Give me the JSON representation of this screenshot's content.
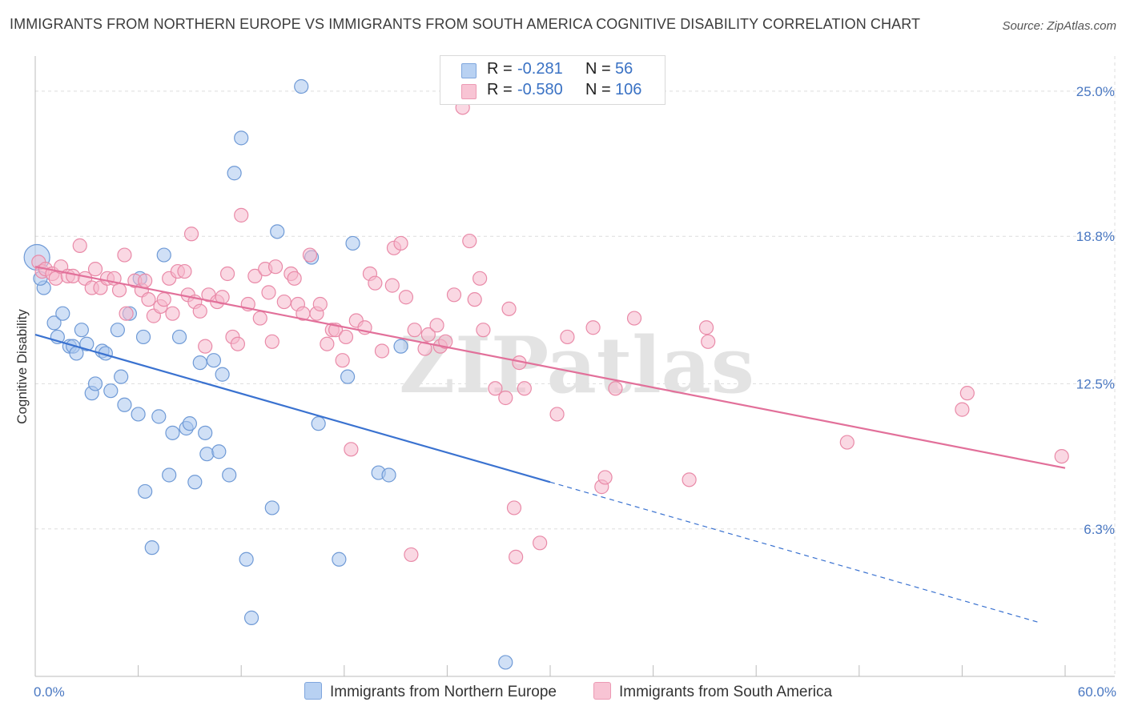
{
  "title": "IMMIGRANTS FROM NORTHERN EUROPE VS IMMIGRANTS FROM SOUTH AMERICA COGNITIVE DISABILITY CORRELATION CHART",
  "source": "Source: ZipAtlas.com",
  "watermark": "ZIPatlas",
  "legend": {
    "rows": [
      {
        "r_label": "R =",
        "r_value": "-0.281",
        "n_label": "N =",
        "n_value": "56"
      },
      {
        "r_label": "R =",
        "r_value": "-0.580",
        "n_label": "N =",
        "n_value": "106"
      }
    ]
  },
  "bottom_legend": {
    "series1": "Immigrants from Northern Europe",
    "series2": "Immigrants from South America"
  },
  "colors": {
    "series1_fill": "#a9c7ee",
    "series1_stroke": "#6f9ad6",
    "series1_line": "#3a72d0",
    "series2_fill": "#f6b8cc",
    "series2_stroke": "#e98aa8",
    "series2_line": "#e2709a",
    "tick_label": "#4a78c2",
    "grid": "#dddddd"
  },
  "chart_data": {
    "type": "scatter",
    "xlabel": "",
    "ylabel": "Cognitive Disability",
    "xlim": [
      0,
      60
    ],
    "ylim": [
      0,
      26.5
    ],
    "x_tick_labels": [
      "0.0%",
      "60.0%"
    ],
    "y_ticks": [
      6.3,
      12.5,
      18.8,
      25.0
    ],
    "y_tick_labels": [
      "6.3%",
      "12.5%",
      "18.8%",
      "25.0%"
    ],
    "grid": "horizontal dashed",
    "series": [
      {
        "name": "Immigrants from Northern Europe",
        "trend": {
          "x0": 0,
          "y0": 14.6,
          "x1": 30,
          "y1": 8.3,
          "dashed_to_x": 58.5,
          "dashed_to_y": 2.3
        },
        "points": [
          [
            0.1,
            17.9
          ],
          [
            0.5,
            16.6
          ],
          [
            0.3,
            17.0
          ],
          [
            1.1,
            15.1
          ],
          [
            1.3,
            14.5
          ],
          [
            1.6,
            15.5
          ],
          [
            2.0,
            14.1
          ],
          [
            2.2,
            14.1
          ],
          [
            2.4,
            13.8
          ],
          [
            2.7,
            14.8
          ],
          [
            3.0,
            14.2
          ],
          [
            3.3,
            12.1
          ],
          [
            3.5,
            12.5
          ],
          [
            3.9,
            13.9
          ],
          [
            4.1,
            13.8
          ],
          [
            4.4,
            12.2
          ],
          [
            4.8,
            14.8
          ],
          [
            5.0,
            12.8
          ],
          [
            5.2,
            11.6
          ],
          [
            5.5,
            15.5
          ],
          [
            6.0,
            11.2
          ],
          [
            6.1,
            17.0
          ],
          [
            6.3,
            14.5
          ],
          [
            6.4,
            7.9
          ],
          [
            6.8,
            5.5
          ],
          [
            7.2,
            11.1
          ],
          [
            7.5,
            18.0
          ],
          [
            7.8,
            8.6
          ],
          [
            8.0,
            10.4
          ],
          [
            8.4,
            14.5
          ],
          [
            8.8,
            10.6
          ],
          [
            9.0,
            10.8
          ],
          [
            9.3,
            8.3
          ],
          [
            9.6,
            13.4
          ],
          [
            9.9,
            10.4
          ],
          [
            10.0,
            9.5
          ],
          [
            10.4,
            13.5
          ],
          [
            10.7,
            9.6
          ],
          [
            10.9,
            12.9
          ],
          [
            11.3,
            8.6
          ],
          [
            11.6,
            21.5
          ],
          [
            12.0,
            23.0
          ],
          [
            12.3,
            5.0
          ],
          [
            12.6,
            2.5
          ],
          [
            13.8,
            7.2
          ],
          [
            14.1,
            19.0
          ],
          [
            15.5,
            25.2
          ],
          [
            16.1,
            17.9
          ],
          [
            16.5,
            10.8
          ],
          [
            17.7,
            5.0
          ],
          [
            18.2,
            12.8
          ],
          [
            18.5,
            18.5
          ],
          [
            20.0,
            8.7
          ],
          [
            20.6,
            8.6
          ],
          [
            21.3,
            14.1
          ],
          [
            27.4,
            0.6
          ]
        ]
      },
      {
        "name": "Immigrants from South America",
        "trend": {
          "x0": 0,
          "y0": 17.5,
          "x1": 60,
          "y1": 8.9
        },
        "points": [
          [
            0.2,
            17.7
          ],
          [
            0.4,
            17.3
          ],
          [
            0.6,
            17.4
          ],
          [
            1.0,
            17.2
          ],
          [
            1.2,
            17.0
          ],
          [
            1.5,
            17.5
          ],
          [
            1.9,
            17.1
          ],
          [
            2.2,
            17.1
          ],
          [
            2.6,
            18.4
          ],
          [
            2.9,
            17.0
          ],
          [
            3.3,
            16.6
          ],
          [
            3.5,
            17.4
          ],
          [
            3.8,
            16.6
          ],
          [
            4.2,
            17.0
          ],
          [
            4.6,
            17.0
          ],
          [
            4.9,
            16.5
          ],
          [
            5.2,
            18.0
          ],
          [
            5.3,
            15.5
          ],
          [
            5.8,
            16.9
          ],
          [
            6.2,
            16.5
          ],
          [
            6.4,
            16.9
          ],
          [
            6.6,
            16.1
          ],
          [
            6.9,
            15.4
          ],
          [
            7.3,
            15.8
          ],
          [
            7.5,
            16.1
          ],
          [
            7.8,
            17.0
          ],
          [
            8.0,
            15.5
          ],
          [
            8.3,
            17.3
          ],
          [
            8.7,
            17.3
          ],
          [
            8.9,
            16.3
          ],
          [
            9.1,
            18.9
          ],
          [
            9.3,
            16.0
          ],
          [
            9.6,
            15.6
          ],
          [
            9.9,
            14.1
          ],
          [
            10.1,
            16.3
          ],
          [
            10.6,
            16.0
          ],
          [
            10.9,
            16.2
          ],
          [
            11.2,
            17.2
          ],
          [
            11.5,
            14.5
          ],
          [
            11.8,
            14.2
          ],
          [
            12.0,
            19.7
          ],
          [
            12.4,
            15.9
          ],
          [
            12.8,
            17.1
          ],
          [
            13.1,
            15.3
          ],
          [
            13.4,
            17.4
          ],
          [
            13.6,
            16.4
          ],
          [
            13.8,
            14.3
          ],
          [
            14.0,
            17.5
          ],
          [
            14.5,
            16.0
          ],
          [
            14.9,
            17.2
          ],
          [
            15.1,
            17.0
          ],
          [
            15.3,
            15.9
          ],
          [
            15.6,
            15.5
          ],
          [
            16.0,
            18.0
          ],
          [
            16.4,
            15.5
          ],
          [
            16.6,
            15.9
          ],
          [
            17.0,
            14.2
          ],
          [
            17.3,
            14.8
          ],
          [
            17.5,
            14.8
          ],
          [
            17.9,
            13.5
          ],
          [
            18.1,
            14.5
          ],
          [
            18.4,
            9.7
          ],
          [
            18.7,
            15.2
          ],
          [
            19.2,
            14.9
          ],
          [
            19.5,
            17.2
          ],
          [
            19.8,
            16.8
          ],
          [
            20.2,
            13.9
          ],
          [
            20.8,
            16.7
          ],
          [
            20.9,
            18.3
          ],
          [
            21.3,
            18.5
          ],
          [
            21.6,
            16.2
          ],
          [
            21.9,
            5.2
          ],
          [
            22.1,
            14.8
          ],
          [
            22.7,
            14.0
          ],
          [
            22.9,
            14.6
          ],
          [
            23.4,
            15.0
          ],
          [
            23.6,
            14.1
          ],
          [
            23.9,
            14.3
          ],
          [
            24.4,
            16.3
          ],
          [
            24.9,
            24.3
          ],
          [
            25.3,
            18.6
          ],
          [
            25.6,
            16.1
          ],
          [
            25.9,
            17.0
          ],
          [
            26.1,
            14.8
          ],
          [
            26.8,
            12.3
          ],
          [
            27.4,
            11.9
          ],
          [
            27.6,
            15.7
          ],
          [
            27.9,
            7.2
          ],
          [
            28.0,
            5.1
          ],
          [
            28.2,
            13.4
          ],
          [
            28.5,
            12.3
          ],
          [
            29.4,
            5.7
          ],
          [
            30.4,
            11.2
          ],
          [
            31.0,
            14.5
          ],
          [
            32.5,
            14.9
          ],
          [
            33.0,
            8.1
          ],
          [
            33.2,
            8.5
          ],
          [
            33.8,
            12.3
          ],
          [
            34.9,
            15.3
          ],
          [
            38.1,
            8.4
          ],
          [
            39.1,
            14.9
          ],
          [
            39.2,
            14.3
          ],
          [
            47.3,
            10.0
          ],
          [
            54.0,
            11.4
          ],
          [
            54.3,
            12.1
          ],
          [
            59.8,
            9.4
          ]
        ]
      }
    ]
  }
}
